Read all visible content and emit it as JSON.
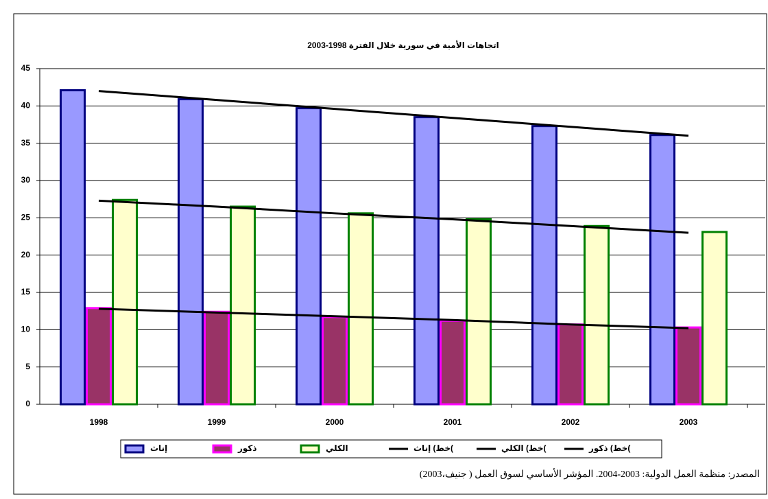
{
  "chart_data": {
    "type": "bar",
    "title": "اتجاهات الأمية في سورية خلال الفترة 1998-2003",
    "categories": [
      "1998",
      "1999",
      "2000",
      "2001",
      "2002",
      "2003"
    ],
    "series": [
      {
        "name": "إناث",
        "type": "bar",
        "color": "#9999ff",
        "stroke": "#000080",
        "values": [
          42.1,
          40.9,
          39.7,
          38.5,
          37.3,
          36.1
        ]
      },
      {
        "name": "ذكور",
        "type": "bar",
        "color": "#993366",
        "stroke": "#ff00ff",
        "values": [
          12.9,
          12.4,
          11.7,
          11.2,
          10.7,
          10.3
        ]
      },
      {
        "name": "الكلي",
        "type": "bar",
        "color": "#ffffcc",
        "stroke": "#008000",
        "values": [
          27.4,
          26.5,
          25.6,
          24.8,
          23.9,
          23.1
        ]
      },
      {
        "name": "خط) إناث(",
        "type": "line",
        "color": "#000000",
        "values": [
          42.0,
          40.8,
          39.6,
          38.4,
          37.2,
          36.0
        ]
      },
      {
        "name": "خط) الكلي(",
        "type": "line",
        "color": "#000000",
        "values": [
          27.3,
          26.5,
          25.6,
          24.8,
          23.9,
          23.0
        ]
      },
      {
        "name": "خط) ذكور(",
        "type": "line",
        "color": "#000000",
        "values": [
          12.8,
          12.3,
          11.8,
          11.3,
          10.7,
          10.2
        ]
      }
    ],
    "ylim": [
      0,
      45
    ],
    "yticks": [
      0,
      5,
      10,
      15,
      20,
      25,
      30,
      35,
      40,
      45
    ],
    "grid": true,
    "legend": "bottom"
  },
  "source": "المصدر: منظمة العمل الدولية: 2003-2004. المؤشر الأساسي لسوق العمل ( جنيف،2003)"
}
